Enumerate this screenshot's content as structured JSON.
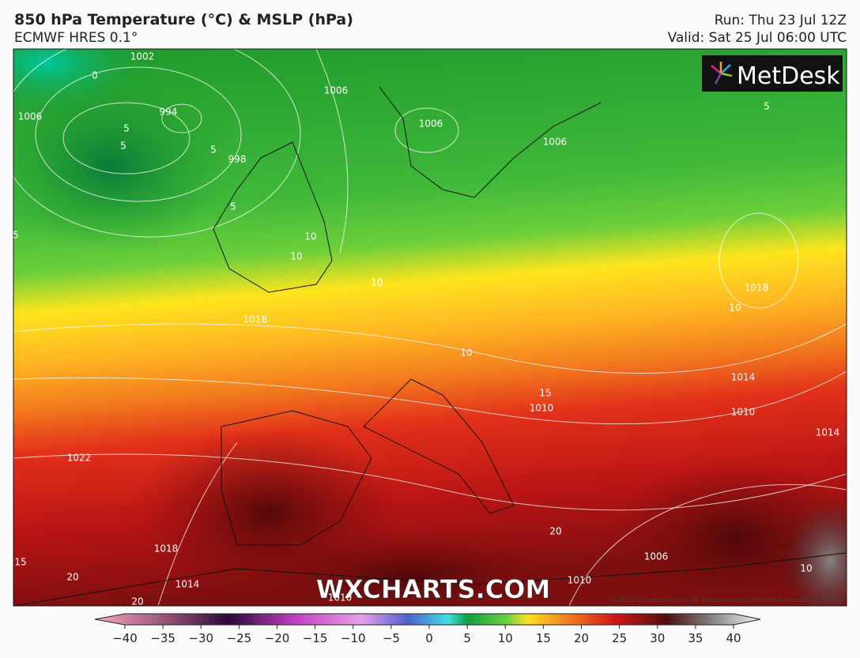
{
  "header": {
    "title": "850 hPa Temperature (°C) & MSLP (hPa)",
    "subtitle": "ECMWF HRES 0.1°",
    "run": "Run: Thu 23 Jul 12Z",
    "valid": "Valid: Sat 25 Jul 06:00 UTC"
  },
  "logo": "MetDesk",
  "watermark": "WXCHARTS.COM",
  "copyright": "©2020 European Centre for Medium-range Weather Forecasts (ECMWF)",
  "contour_labels": [
    "0",
    "1002",
    "1006",
    "994",
    "5",
    "5",
    "5",
    "998",
    "1006",
    "1006",
    "1006",
    "5",
    "5",
    "5",
    "10",
    "10",
    "10",
    "1018",
    "10",
    "1018",
    "10",
    "15",
    "1010",
    "1014",
    "1010",
    "1014",
    "1022",
    "1018",
    "1014",
    "15",
    "20",
    "20",
    "1006",
    "1010",
    "20",
    "1010",
    "10"
  ],
  "colorbar": {
    "ticks": [
      {
        "value": -40,
        "label": "−40"
      },
      {
        "value": -35,
        "label": "−35"
      },
      {
        "value": -30,
        "label": "−30"
      },
      {
        "value": -25,
        "label": "−25"
      },
      {
        "value": -20,
        "label": "−20"
      },
      {
        "value": -15,
        "label": "−15"
      },
      {
        "value": -10,
        "label": "−10"
      },
      {
        "value": -5,
        "label": "−5"
      },
      0,
      5,
      10,
      15,
      20,
      25,
      30,
      35,
      40
    ],
    "lim": [
      -40,
      40
    ]
  }
}
